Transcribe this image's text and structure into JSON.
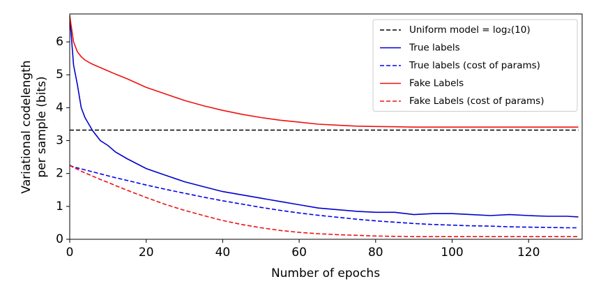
{
  "chart_data": {
    "type": "line",
    "xlabel": "Number of epochs",
    "ylabel": [
      "Variational codelength",
      "per sample (bits)"
    ],
    "x": [
      0,
      1,
      2,
      3,
      4,
      5,
      6,
      8,
      10,
      12,
      15,
      20,
      25,
      30,
      35,
      40,
      45,
      50,
      55,
      60,
      65,
      70,
      75,
      80,
      85,
      90,
      95,
      100,
      105,
      110,
      115,
      120,
      125,
      130,
      133
    ],
    "xlim": [
      0,
      134
    ],
    "xticks": [
      0,
      20,
      40,
      60,
      80,
      100,
      120
    ],
    "ylim": [
      0,
      6.85
    ],
    "yticks": [
      0,
      1,
      2,
      3,
      4,
      5,
      6
    ],
    "legend": "upper right",
    "series": [
      {
        "name": "Uniform model = log₂(10)",
        "color": "#000000",
        "dashed": true,
        "values": [
          3.32,
          3.32,
          3.32,
          3.32,
          3.32,
          3.32,
          3.32,
          3.32,
          3.32,
          3.32,
          3.32,
          3.32,
          3.32,
          3.32,
          3.32,
          3.32,
          3.32,
          3.32,
          3.32,
          3.32,
          3.32,
          3.32,
          3.32,
          3.32,
          3.32,
          3.32,
          3.32,
          3.32,
          3.32,
          3.32,
          3.32,
          3.32,
          3.32,
          3.32,
          3.32
        ]
      },
      {
        "name": "True labels",
        "color": "#0000cc",
        "dashed": false,
        "values": [
          6.8,
          5.3,
          4.7,
          4.0,
          3.7,
          3.5,
          3.3,
          3.0,
          2.85,
          2.65,
          2.45,
          2.15,
          1.95,
          1.75,
          1.6,
          1.45,
          1.35,
          1.25,
          1.15,
          1.05,
          0.95,
          0.9,
          0.85,
          0.82,
          0.82,
          0.75,
          0.78,
          0.78,
          0.75,
          0.72,
          0.75,
          0.72,
          0.7,
          0.7,
          0.68
        ]
      },
      {
        "name": "True labels (cost of params)",
        "color": "#0000ee",
        "dashed": true,
        "values": [
          2.25,
          2.2,
          2.17,
          2.14,
          2.11,
          2.08,
          2.05,
          1.99,
          1.93,
          1.87,
          1.79,
          1.65,
          1.52,
          1.4,
          1.28,
          1.17,
          1.07,
          0.97,
          0.88,
          0.8,
          0.73,
          0.67,
          0.61,
          0.56,
          0.52,
          0.48,
          0.45,
          0.43,
          0.41,
          0.4,
          0.38,
          0.37,
          0.36,
          0.35,
          0.35
        ]
      },
      {
        "name": "Fake Labels",
        "color": "#ee1111",
        "dashed": false,
        "values": [
          6.8,
          6.0,
          5.7,
          5.55,
          5.45,
          5.38,
          5.32,
          5.22,
          5.12,
          5.02,
          4.88,
          4.62,
          4.42,
          4.22,
          4.06,
          3.92,
          3.8,
          3.7,
          3.62,
          3.56,
          3.5,
          3.47,
          3.44,
          3.43,
          3.42,
          3.41,
          3.41,
          3.41,
          3.41,
          3.41,
          3.41,
          3.41,
          3.41,
          3.41,
          3.41
        ]
      },
      {
        "name": "Fake Labels (cost of params)",
        "color": "#ee1111",
        "dashed": true,
        "values": [
          2.25,
          2.18,
          2.13,
          2.07,
          2.02,
          1.97,
          1.92,
          1.82,
          1.73,
          1.63,
          1.49,
          1.27,
          1.06,
          0.88,
          0.72,
          0.57,
          0.45,
          0.35,
          0.27,
          0.21,
          0.17,
          0.14,
          0.12,
          0.1,
          0.09,
          0.08,
          0.08,
          0.08,
          0.08,
          0.08,
          0.08,
          0.08,
          0.08,
          0.08,
          0.08
        ]
      }
    ]
  }
}
